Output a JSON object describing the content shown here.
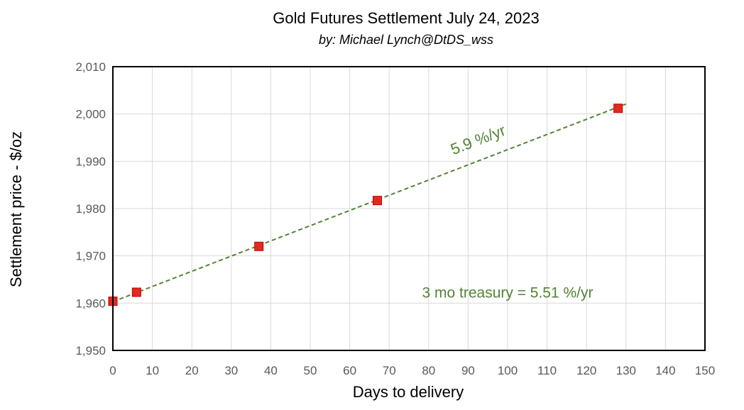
{
  "chart_data": {
    "type": "scatter",
    "title": "Gold Futures Settlement July 24, 2023",
    "subtitle": "by:  Michael Lynch@DtDS_wss",
    "xlabel": "Days to delivery",
    "ylabel": "Settlement price - $/oz",
    "xlim": [
      0,
      150
    ],
    "ylim": [
      1950,
      2010
    ],
    "x_ticks": [
      0,
      10,
      20,
      30,
      40,
      50,
      60,
      70,
      80,
      90,
      100,
      110,
      120,
      130,
      140,
      150
    ],
    "y_ticks": [
      1950,
      1960,
      1970,
      1980,
      1990,
      2000,
      2010
    ],
    "x_tick_labels": [
      "0",
      "10",
      "20",
      "30",
      "40",
      "50",
      "60",
      "70",
      "80",
      "90",
      "100",
      "110",
      "120",
      "130",
      "140",
      "150"
    ],
    "y_tick_labels": [
      "1,950",
      "1,960",
      "1,970",
      "1,980",
      "1,990",
      "2,000",
      "2,010"
    ],
    "grid": true,
    "series": [
      {
        "x": [
          0,
          6,
          37,
          67,
          128
        ],
        "y": [
          1960.4,
          1962.3,
          1972.0,
          1981.7,
          2001.2
        ],
        "marker": "square",
        "color": "#e02b1f"
      }
    ],
    "trendline": {
      "x": [
        0,
        130
      ],
      "y": [
        1960.3,
        2002.1
      ],
      "style": "dashed",
      "color": "#548235"
    },
    "annotations": [
      {
        "text": "5.9 %/yr",
        "x": 93,
        "y": 1993.5,
        "color": "#548235"
      },
      {
        "text": "3 mo treasury = 5.51 %/yr",
        "x": 100,
        "y": 1961.2,
        "color": "#548235"
      }
    ]
  }
}
